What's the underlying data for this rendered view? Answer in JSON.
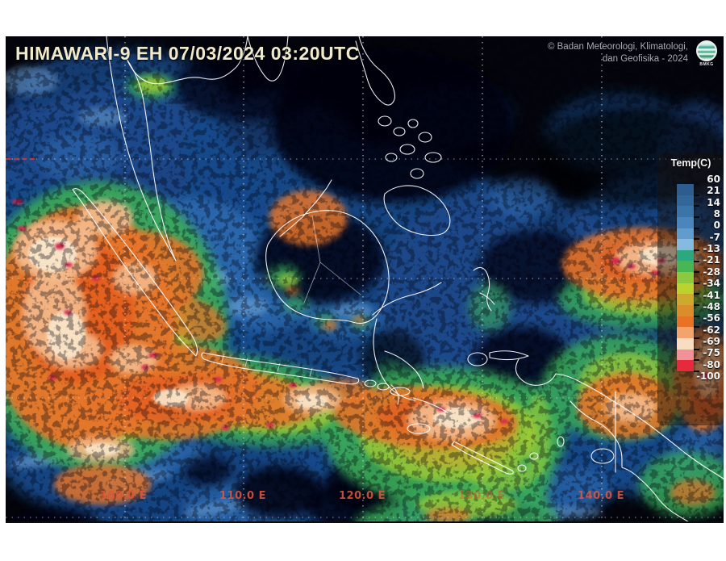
{
  "header": {
    "title": "HIMAWARI-9 EH 07/03/2024 03:20UTC",
    "copyright_line1": "© Badan Meteorologi, Klimatologi,",
    "copyright_line2": "dan Geofisika - 2024",
    "logo_label": "BMKG"
  },
  "legend": {
    "title": "Temp(C)",
    "ticks": [
      "60",
      "21",
      "14",
      "8",
      "0",
      "-7",
      "-13",
      "-21",
      "-28",
      "-34",
      "-41",
      "-48",
      "-56",
      "-62",
      "-69",
      "-75",
      "-80",
      "-100"
    ],
    "band_colors": [
      "#2d5c8f",
      "#336799",
      "#3b74a8",
      "#4a86bb",
      "#629ccc",
      "#86bade",
      "#2ba87e",
      "#48b653",
      "#8cc93e",
      "#bad32f",
      "#cfa92d",
      "#db8d2b",
      "#e87225",
      "#f2a36e",
      "#f8ddc2",
      "#f09297",
      "#e62a3d"
    ]
  },
  "grid": {
    "longitude_labels": [
      "100.0 E",
      "110.0 E",
      "120.0 E",
      "130.0 E",
      "140.0 E"
    ],
    "label_color": "#de543e"
  },
  "map": {
    "palette": {
      "clear_sky": "#04050c",
      "low_cloud_blue": "#1a4a8c",
      "mid_cloud_blue": "#2f6db4",
      "pale_blue": "#6fa6da",
      "cold_green": "#3aac58",
      "yellow_green": "#a2cc36",
      "gold": "#cfa62d",
      "orange": "#e5742a",
      "deep_orange": "#e2571e",
      "peach": "#f4bb8c",
      "cream": "#f9e6ca",
      "overshoot_red": "#d42a50",
      "coastline": "#ffffff",
      "grid_dots": "#e8e8ec"
    }
  }
}
